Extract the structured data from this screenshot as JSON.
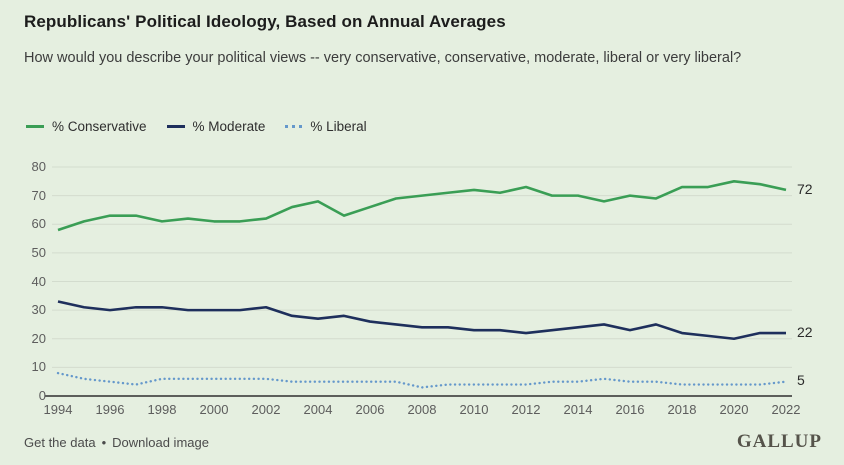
{
  "header": {
    "title": "Republicans' Political Ideology, Based on Annual Averages",
    "subtitle": "How would you describe your political views -- very conservative, conservative, moderate, liberal or very liberal?"
  },
  "legend": [
    {
      "label": "% Conservative",
      "color": "#3a9e55",
      "style": "solid"
    },
    {
      "label": "% Moderate",
      "color": "#1e2f5c",
      "style": "solid"
    },
    {
      "label": "% Liberal",
      "color": "#6598cb",
      "style": "dotted"
    }
  ],
  "chart_data": {
    "type": "line",
    "title": "Republicans' Political Ideology, Based on Annual Averages",
    "xlabel": "",
    "ylabel": "",
    "ylim": [
      0,
      80
    ],
    "grid": "horizontal",
    "legend_position": "top-left",
    "x": [
      1994,
      1995,
      1996,
      1997,
      1998,
      1999,
      2000,
      2001,
      2002,
      2003,
      2004,
      2005,
      2006,
      2007,
      2008,
      2009,
      2010,
      2011,
      2012,
      2013,
      2014,
      2015,
      2016,
      2017,
      2018,
      2019,
      2020,
      2021,
      2022
    ],
    "series": [
      {
        "name": "% Conservative",
        "color": "#3a9e55",
        "style": "solid",
        "values": [
          58,
          61,
          63,
          63,
          61,
          62,
          61,
          61,
          62,
          66,
          68,
          63,
          66,
          69,
          70,
          71,
          72,
          71,
          73,
          70,
          70,
          68,
          70,
          69,
          73,
          73,
          75,
          74,
          72
        ]
      },
      {
        "name": "% Moderate",
        "color": "#1e2f5c",
        "style": "solid",
        "values": [
          33,
          31,
          30,
          31,
          31,
          30,
          30,
          30,
          31,
          28,
          27,
          28,
          26,
          25,
          24,
          24,
          23,
          23,
          22,
          23,
          24,
          25,
          23,
          25,
          22,
          21,
          20,
          22,
          22
        ]
      },
      {
        "name": "% Liberal",
        "color": "#6598cb",
        "style": "dotted",
        "values": [
          8,
          6,
          5,
          4,
          6,
          6,
          6,
          6,
          6,
          5,
          5,
          5,
          5,
          5,
          3,
          4,
          4,
          4,
          4,
          5,
          5,
          6,
          5,
          5,
          4,
          4,
          4,
          4,
          5
        ]
      }
    ],
    "yticks": [
      0,
      10,
      20,
      30,
      40,
      50,
      60,
      70,
      80
    ],
    "xticks": [
      1994,
      1996,
      1998,
      2000,
      2002,
      2004,
      2006,
      2008,
      2010,
      2012,
      2014,
      2016,
      2018,
      2020,
      2022
    ],
    "end_labels": [
      "72",
      "22",
      "5"
    ]
  },
  "colors": {
    "background": "#e5efe0",
    "gridline": "#d3dcce",
    "axis": "#2f2f2f",
    "conservative": "#3a9e55",
    "moderate": "#1e2f5c",
    "liberal": "#6598cb"
  },
  "footer": {
    "link1": "Get the data",
    "separator": "•",
    "link2": "Download image",
    "brand": "GALLUP"
  }
}
